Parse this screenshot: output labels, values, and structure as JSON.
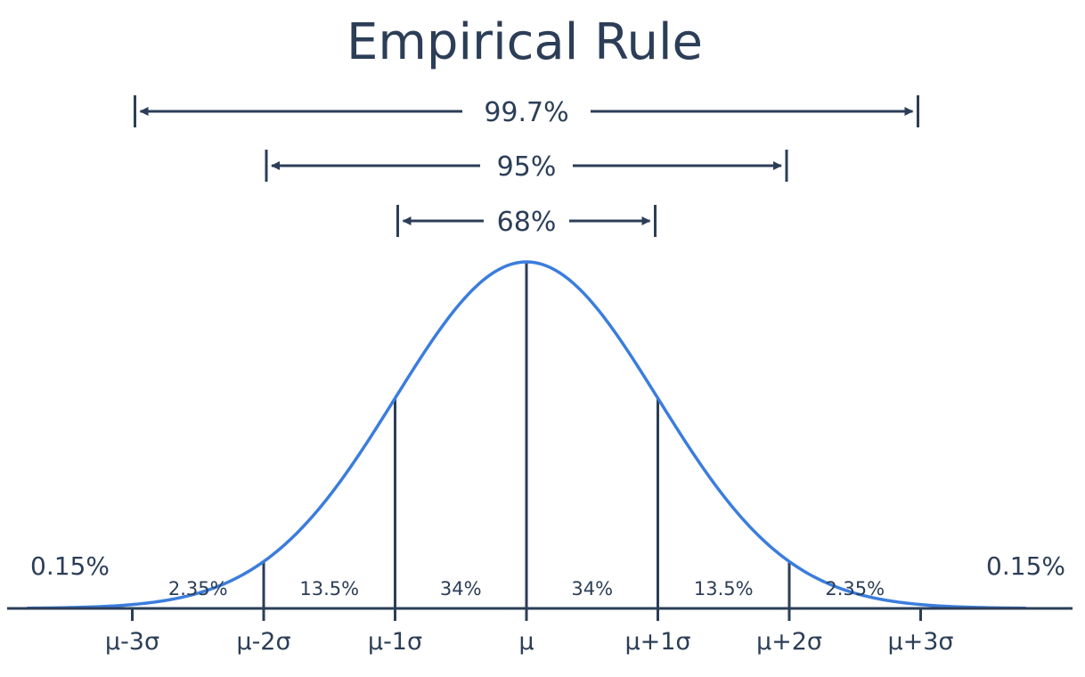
{
  "chart_data": {
    "type": "line",
    "title": "Empirical Rule",
    "xlabel": "",
    "ylabel": "",
    "xlim": [
      -3.8,
      3.8
    ],
    "curve": "normal-density",
    "grid": false,
    "curve_color": "#3b7ddd",
    "text_color": "#2c3e57",
    "x_ticks": [
      {
        "x": -3,
        "label": "μ-3σ"
      },
      {
        "x": -2,
        "label": "μ-2σ"
      },
      {
        "x": -1,
        "label": "μ-1σ"
      },
      {
        "x": 0,
        "label": "μ"
      },
      {
        "x": 1,
        "label": "μ+1σ"
      },
      {
        "x": 2,
        "label": "μ+2σ"
      },
      {
        "x": 3,
        "label": "μ+3σ"
      }
    ],
    "dividers": [
      -2,
      -1,
      0,
      1,
      2
    ],
    "regions": [
      {
        "from": -3,
        "to": -2,
        "label": "2.35%"
      },
      {
        "from": -2,
        "to": -1,
        "label": "13.5%"
      },
      {
        "from": -1,
        "to": 0,
        "label": "34%"
      },
      {
        "from": 0,
        "to": 1,
        "label": "34%"
      },
      {
        "from": 1,
        "to": 2,
        "label": "13.5%"
      },
      {
        "from": 2,
        "to": 3,
        "label": "2.35%"
      }
    ],
    "tails": [
      {
        "side": "left",
        "label": "0.15%"
      },
      {
        "side": "right",
        "label": "0.15%"
      }
    ],
    "ranges": [
      {
        "sigma": 3,
        "label": "99.7%"
      },
      {
        "sigma": 2,
        "label": "95%"
      },
      {
        "sigma": 1,
        "label": "68%"
      }
    ]
  }
}
